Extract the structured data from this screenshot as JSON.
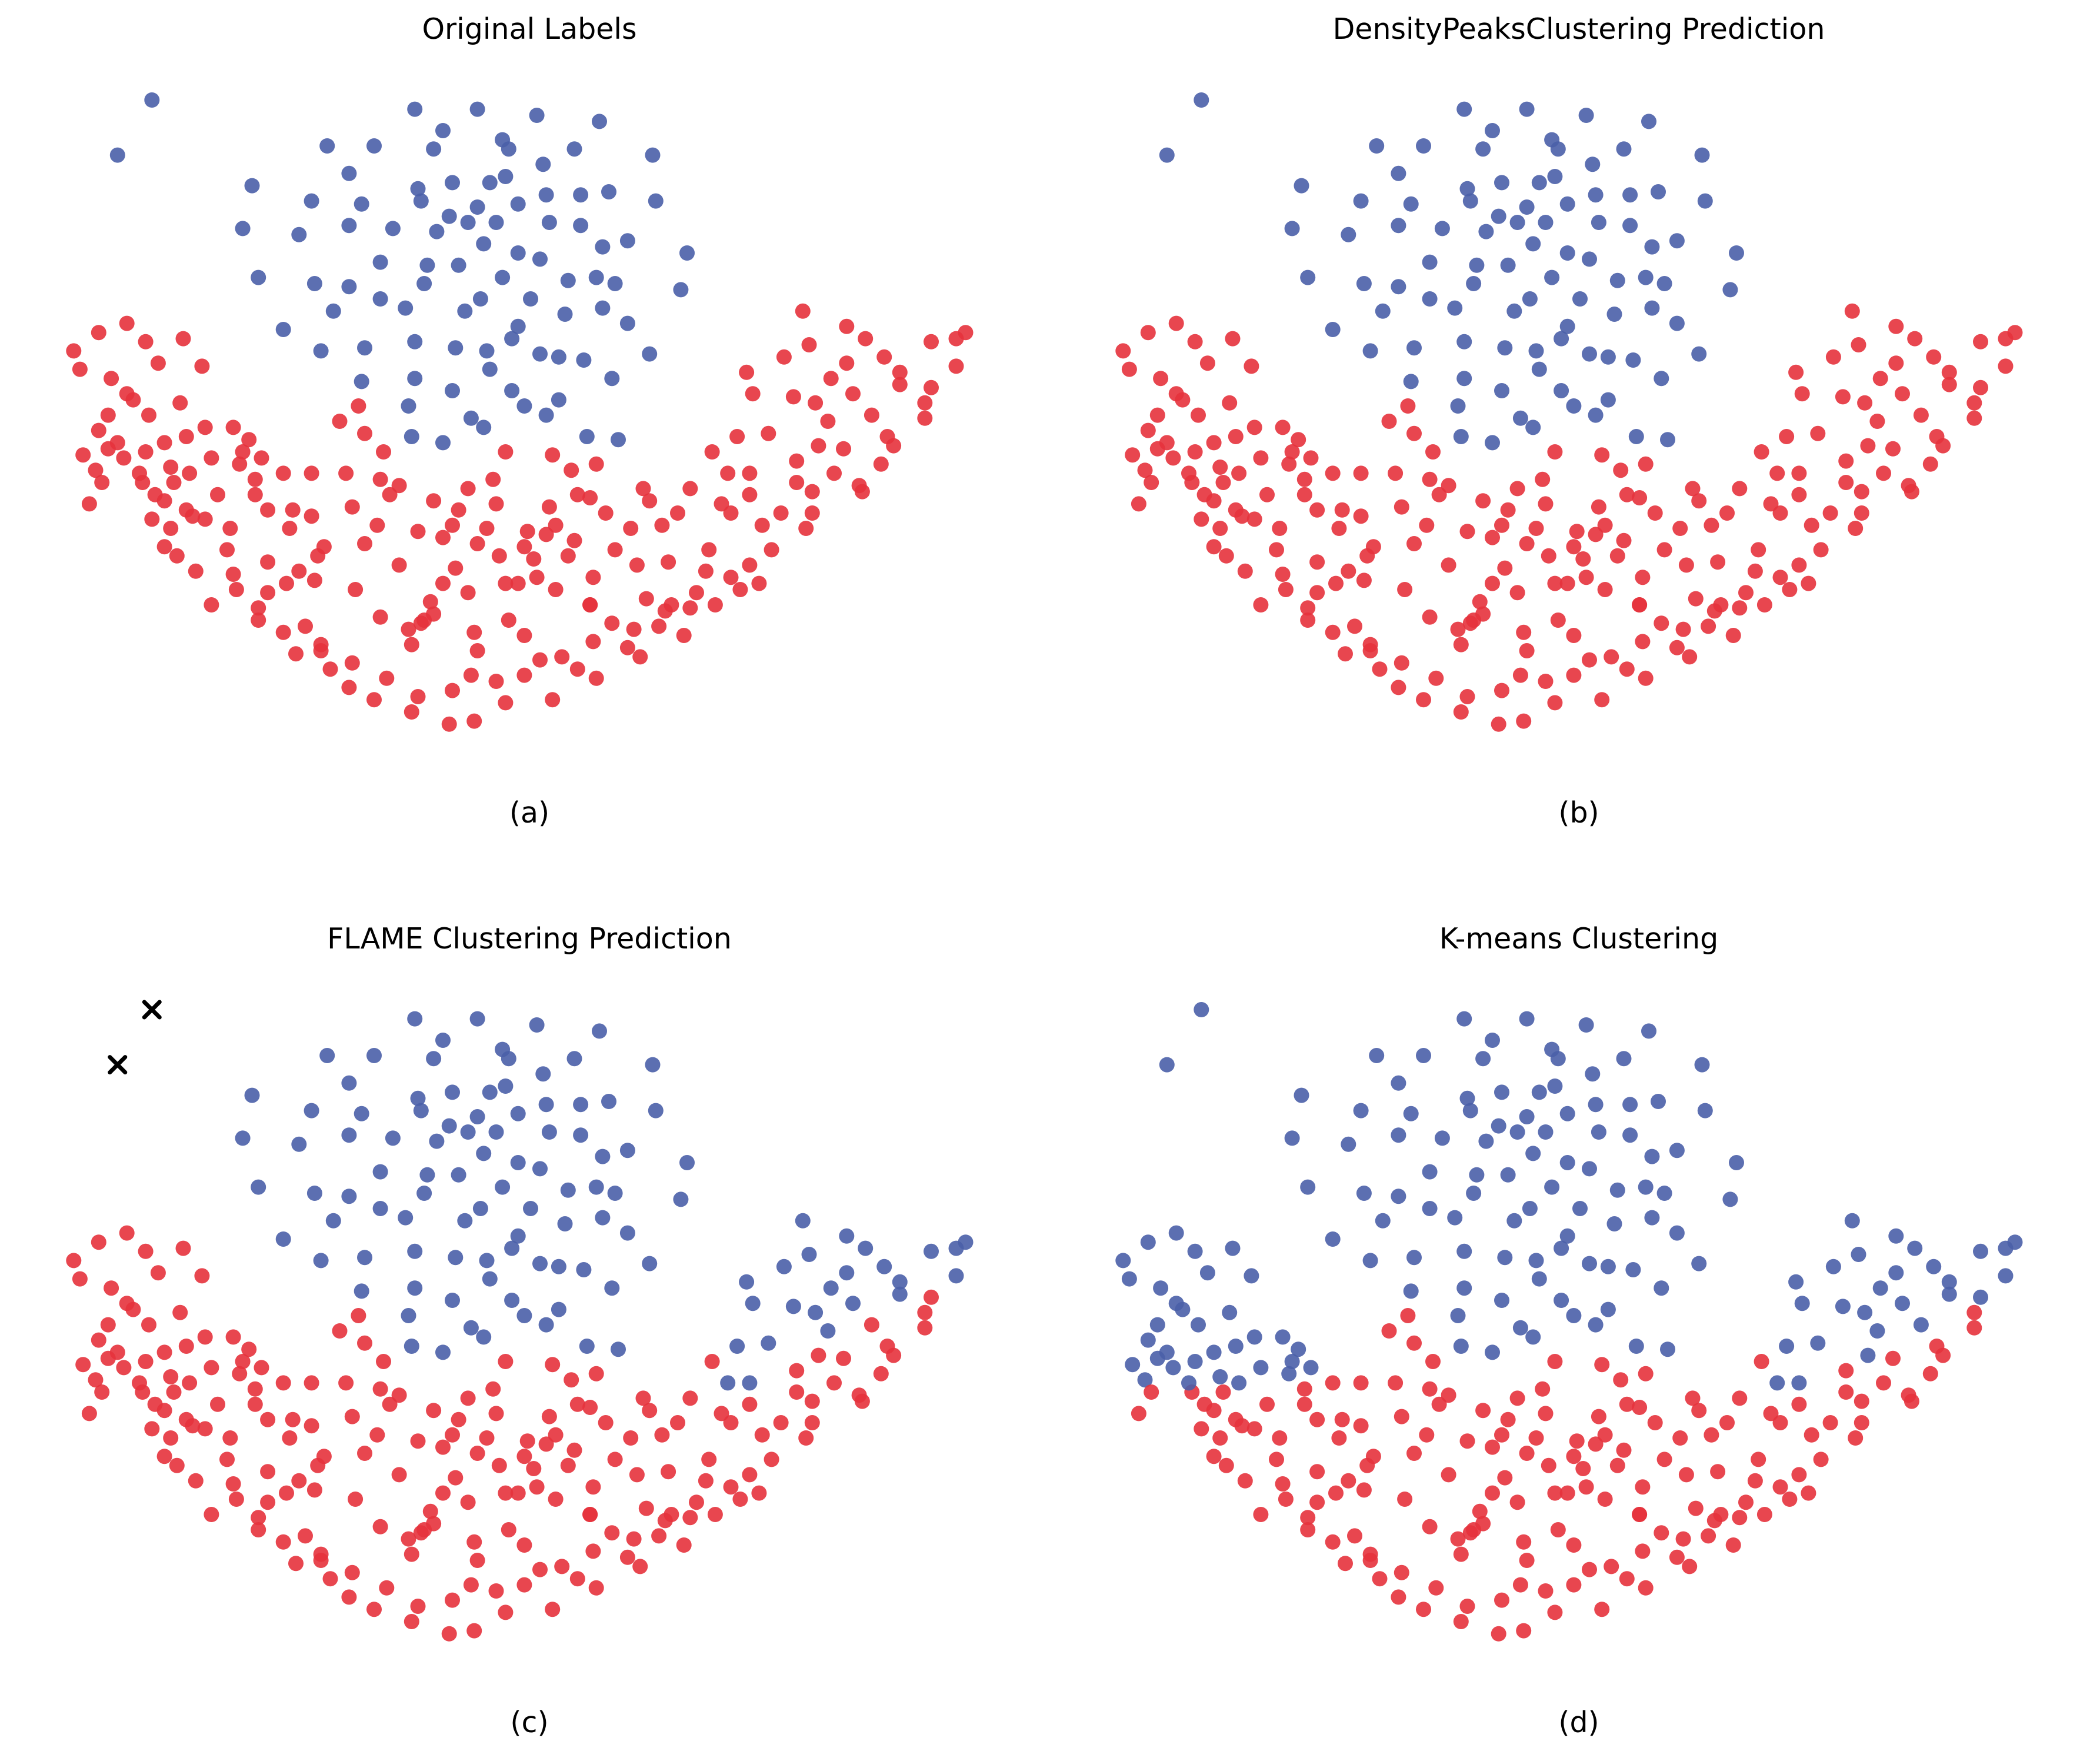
{
  "colors": {
    "cluster_0": "#e6323c",
    "cluster_1": "#4a5fa8",
    "noise": "#000000"
  },
  "chart_data": [
    {
      "type": "scatter",
      "title": "Original Labels",
      "caption": "(a)",
      "split": "original"
    },
    {
      "type": "scatter",
      "title": "DensityPeaksClustering Prediction",
      "caption": "(b)",
      "split": "original"
    },
    {
      "type": "scatter",
      "title": "FLAME Clustering Prediction",
      "caption": "(c)",
      "split": "flame",
      "noise_marker": "x",
      "noise_points": [
        [
          2.9,
          24.5
        ],
        [
          1.8,
          22.7
        ]
      ]
    },
    {
      "type": "scatter",
      "title": "K-means Clustering",
      "caption": "(d)",
      "split": "kmeans"
    }
  ],
  "points": {
    "cluster_1": [
      [
        2.9,
        24.5
      ],
      [
        1.8,
        22.7
      ],
      [
        11.3,
        24.2
      ],
      [
        13.3,
        24.2
      ],
      [
        15.2,
        24.0
      ],
      [
        17.2,
        23.8
      ],
      [
        12.2,
        23.5
      ],
      [
        14.1,
        23.2
      ],
      [
        8.5,
        23.0
      ],
      [
        10.0,
        23.0
      ],
      [
        11.9,
        22.9
      ],
      [
        14.3,
        22.9
      ],
      [
        16.4,
        22.9
      ],
      [
        18.9,
        22.7
      ],
      [
        15.4,
        22.4
      ],
      [
        9.2,
        22.1
      ],
      [
        14.2,
        22.0
      ],
      [
        6.1,
        21.7
      ],
      [
        12.5,
        21.8
      ],
      [
        13.7,
        21.8
      ],
      [
        17.5,
        21.5
      ],
      [
        11.4,
        21.6
      ],
      [
        8.0,
        21.2
      ],
      [
        9.6,
        21.1
      ],
      [
        11.5,
        21.2
      ],
      [
        14.6,
        21.1
      ],
      [
        13.3,
        21.0
      ],
      [
        16.6,
        21.4
      ],
      [
        15.5,
        21.4
      ],
      [
        19.0,
        21.2
      ],
      [
        12.4,
        20.7
      ],
      [
        5.8,
        20.3
      ],
      [
        7.6,
        20.1
      ],
      [
        9.2,
        20.4
      ],
      [
        10.6,
        20.3
      ],
      [
        13.0,
        20.5
      ],
      [
        13.9,
        20.5
      ],
      [
        15.6,
        20.5
      ],
      [
        16.6,
        20.4
      ],
      [
        12.0,
        20.2
      ],
      [
        13.5,
        19.8
      ],
      [
        14.6,
        19.5
      ],
      [
        10.2,
        19.2
      ],
      [
        11.7,
        19.1
      ],
      [
        15.3,
        19.3
      ],
      [
        18.1,
        19.9
      ],
      [
        16.2,
        18.6
      ],
      [
        17.3,
        19.7
      ],
      [
        6.3,
        18.7
      ],
      [
        8.1,
        18.5
      ],
      [
        12.7,
        19.1
      ],
      [
        17.1,
        18.7
      ],
      [
        9.2,
        18.4
      ],
      [
        11.6,
        18.5
      ],
      [
        14.1,
        18.7
      ],
      [
        15.0,
        18.0
      ],
      [
        17.7,
        18.5
      ],
      [
        19.8,
        18.3
      ],
      [
        13.4,
        18.0
      ],
      [
        11.0,
        17.7
      ],
      [
        10.2,
        18.0
      ],
      [
        8.7,
        17.6
      ],
      [
        12.9,
        17.6
      ],
      [
        14.6,
        17.1
      ],
      [
        16.1,
        17.5
      ],
      [
        17.3,
        17.7
      ],
      [
        20.0,
        19.5
      ],
      [
        7.1,
        17.0
      ],
      [
        9.7,
        16.4
      ],
      [
        11.3,
        16.6
      ],
      [
        12.6,
        16.4
      ],
      [
        13.6,
        16.3
      ],
      [
        15.3,
        16.2
      ],
      [
        16.7,
        16.0
      ],
      [
        18.8,
        16.2
      ],
      [
        18.1,
        17.2
      ],
      [
        8.3,
        16.3
      ],
      [
        9.6,
        15.3
      ],
      [
        11.3,
        15.4
      ],
      [
        12.5,
        15.0
      ],
      [
        13.7,
        15.7
      ],
      [
        14.4,
        16.7
      ],
      [
        15.9,
        14.7
      ],
      [
        16.8,
        13.5
      ],
      [
        14.8,
        14.5
      ],
      [
        11.1,
        14.5
      ],
      [
        13.5,
        13.8
      ],
      [
        14.4,
        15.0
      ],
      [
        11.2,
        13.5
      ],
      [
        12.2,
        13.3
      ],
      [
        13.1,
        14.1
      ],
      [
        17.6,
        15.4
      ],
      [
        17.8,
        13.4
      ],
      [
        15.5,
        14.2
      ],
      [
        15.9,
        16.1
      ]
    ],
    "cluster_0": [
      [
        23.7,
        17.6
      ],
      [
        25.1,
        17.1
      ],
      [
        25.7,
        16.7
      ],
      [
        27.8,
        16.6
      ],
      [
        28.6,
        16.7
      ],
      [
        26.8,
        15.6
      ],
      [
        27.8,
        15.1
      ],
      [
        25.3,
        14.9
      ],
      [
        26.8,
        15.2
      ],
      [
        27.6,
        14.6
      ],
      [
        28.6,
        15.8
      ],
      [
        24.1,
        14.6
      ],
      [
        23.4,
        14.8
      ],
      [
        24.5,
        14.0
      ],
      [
        22.1,
        14.9
      ],
      [
        25.9,
        14.2
      ],
      [
        27.6,
        14.1
      ],
      [
        26.4,
        13.5
      ],
      [
        25.0,
        13.1
      ],
      [
        22.6,
        13.6
      ],
      [
        21.6,
        13.5
      ],
      [
        20.8,
        13.0
      ],
      [
        23.5,
        12.7
      ],
      [
        22.0,
        12.3
      ],
      [
        24.7,
        12.3
      ],
      [
        24.2,
        13.2
      ],
      [
        21.3,
        12.3
      ],
      [
        20.1,
        11.8
      ],
      [
        19.7,
        11.0
      ],
      [
        21.1,
        11.3
      ],
      [
        23.0,
        11.0
      ],
      [
        24.0,
        11.0
      ],
      [
        25.5,
        11.9
      ],
      [
        26.2,
        12.6
      ],
      [
        26.6,
        13.2
      ],
      [
        24.0,
        11.7
      ],
      [
        23.5,
        12.0
      ],
      [
        22.0,
        11.6
      ],
      [
        25.6,
        11.7
      ],
      [
        23.8,
        10.5
      ],
      [
        22.4,
        10.6
      ],
      [
        21.4,
        11.0
      ],
      [
        22.7,
        9.8
      ],
      [
        22.0,
        9.3
      ],
      [
        20.7,
        9.8
      ],
      [
        18.8,
        11.4
      ],
      [
        18.6,
        11.8
      ],
      [
        20.6,
        9.1
      ],
      [
        19.2,
        10.6
      ],
      [
        18.2,
        10.5
      ],
      [
        17.4,
        11.0
      ],
      [
        16.9,
        11.5
      ],
      [
        17.7,
        9.8
      ],
      [
        18.4,
        9.3
      ],
      [
        19.5,
        8.0
      ],
      [
        17.0,
        8.9
      ],
      [
        16.9,
        8.0
      ],
      [
        16.2,
        9.6
      ],
      [
        16.4,
        10.1
      ],
      [
        15.8,
        10.6
      ],
      [
        15.6,
        11.2
      ],
      [
        14.9,
        10.4
      ],
      [
        14.8,
        9.9
      ],
      [
        15.2,
        8.9
      ],
      [
        14.0,
        9.6
      ],
      [
        13.6,
        10.5
      ],
      [
        13.3,
        10.0
      ],
      [
        14.2,
        8.7
      ],
      [
        13.0,
        8.4
      ],
      [
        12.6,
        9.2
      ],
      [
        12.2,
        10.2
      ],
      [
        12.5,
        10.6
      ],
      [
        11.9,
        11.4
      ],
      [
        13.0,
        11.8
      ],
      [
        13.8,
        12.1
      ],
      [
        14.2,
        13.0
      ],
      [
        15.7,
        12.9
      ],
      [
        16.3,
        12.4
      ],
      [
        17.1,
        12.6
      ],
      [
        16.5,
        11.6
      ],
      [
        13.2,
        7.1
      ],
      [
        13.3,
        6.5
      ],
      [
        14.8,
        7.0
      ],
      [
        14.3,
        7.5
      ],
      [
        17.6,
        7.4
      ],
      [
        16.9,
        8.0
      ],
      [
        15.8,
        8.5
      ],
      [
        14.6,
        8.7
      ],
      [
        15.1,
        9.5
      ],
      [
        15.5,
        10.3
      ],
      [
        13.9,
        11.3
      ],
      [
        12.7,
        11.1
      ],
      [
        12.2,
        8.7
      ],
      [
        11.8,
        8.1
      ],
      [
        11.1,
        7.2
      ],
      [
        11.5,
        7.4
      ],
      [
        10.1,
        10.6
      ],
      [
        9.3,
        11.2
      ],
      [
        10.5,
        11.6
      ],
      [
        10.2,
        12.1
      ],
      [
        10.8,
        11.9
      ],
      [
        9.1,
        12.3
      ],
      [
        10.3,
        13.0
      ],
      [
        9.7,
        13.6
      ],
      [
        9.5,
        14.5
      ],
      [
        8.9,
        14.0
      ],
      [
        8.0,
        12.3
      ],
      [
        7.4,
        11.1
      ],
      [
        8.0,
        10.9
      ],
      [
        8.4,
        9.9
      ],
      [
        8.1,
        8.8
      ],
      [
        9.4,
        8.5
      ],
      [
        10.2,
        7.6
      ],
      [
        11.6,
        7.5
      ],
      [
        11.2,
        6.7
      ],
      [
        11.9,
        7.7
      ],
      [
        10.8,
        9.3
      ],
      [
        11.4,
        10.4
      ],
      [
        9.7,
        10.0
      ],
      [
        8.2,
        9.6
      ],
      [
        7.3,
        10.5
      ],
      [
        6.6,
        11.1
      ],
      [
        6.2,
        11.6
      ],
      [
        6.2,
        12.1
      ],
      [
        5.8,
        13.0
      ],
      [
        5.5,
        13.8
      ],
      [
        4.6,
        13.8
      ],
      [
        4.0,
        13.5
      ],
      [
        3.3,
        13.3
      ],
      [
        2.7,
        13.0
      ],
      [
        2.6,
        12.0
      ],
      [
        3.6,
        12.0
      ],
      [
        4.1,
        12.3
      ],
      [
        4.8,
        12.8
      ],
      [
        5.7,
        12.6
      ],
      [
        3.5,
        12.5
      ],
      [
        4.0,
        11.1
      ],
      [
        3.3,
        11.4
      ],
      [
        3.0,
        11.6
      ],
      [
        4.6,
        10.8
      ],
      [
        5.4,
        10.5
      ],
      [
        5.3,
        9.8
      ],
      [
        6.6,
        9.4
      ],
      [
        7.6,
        9.1
      ],
      [
        7.2,
        8.7
      ],
      [
        6.6,
        8.4
      ],
      [
        5.5,
        9.0
      ],
      [
        6.3,
        7.5
      ],
      [
        7.8,
        7.3
      ],
      [
        8.3,
        6.7
      ],
      [
        9.3,
        6.1
      ],
      [
        10.4,
        5.6
      ],
      [
        11.4,
        5.0
      ],
      [
        12.5,
        5.2
      ],
      [
        13.1,
        5.7
      ],
      [
        13.9,
        5.5
      ],
      [
        14.8,
        5.7
      ],
      [
        15.3,
        6.2
      ],
      [
        16.0,
        6.3
      ],
      [
        16.5,
        5.9
      ],
      [
        17.0,
        6.8
      ],
      [
        18.1,
        6.6
      ],
      [
        18.3,
        7.2
      ],
      [
        19.3,
        7.8
      ],
      [
        20.1,
        7.9
      ],
      [
        19.9,
        7.0
      ],
      [
        20.9,
        8.0
      ],
      [
        21.7,
        8.5
      ],
      [
        22.3,
        8.7
      ],
      [
        21.4,
        8.9
      ],
      [
        20.3,
        8.4
      ],
      [
        19.4,
        9.4
      ],
      [
        18.7,
        8.2
      ],
      [
        19.1,
        7.3
      ],
      [
        18.5,
        6.3
      ],
      [
        17.1,
        5.6
      ],
      [
        15.7,
        4.9
      ],
      [
        14.2,
        4.8
      ],
      [
        13.2,
        4.2
      ],
      [
        12.4,
        4.1
      ],
      [
        11.2,
        4.5
      ],
      [
        10.0,
        4.9
      ],
      [
        9.2,
        5.3
      ],
      [
        8.6,
        5.9
      ],
      [
        8.3,
        6.5
      ],
      [
        7.5,
        6.4
      ],
      [
        7.1,
        7.1
      ],
      [
        6.3,
        7.9
      ],
      [
        5.6,
        8.5
      ],
      [
        4.8,
        8.0
      ],
      [
        4.3,
        9.1
      ],
      [
        3.7,
        9.6
      ],
      [
        3.3,
        9.9
      ],
      [
        3.5,
        10.5
      ],
      [
        2.9,
        10.8
      ],
      [
        2.5,
        12.3
      ],
      [
        2.0,
        12.8
      ],
      [
        1.8,
        13.3
      ],
      [
        1.5,
        13.1
      ],
      [
        1.1,
        12.4
      ],
      [
        0.9,
        11.3
      ],
      [
        1.3,
        12.0
      ],
      [
        0.7,
        12.9
      ],
      [
        1.2,
        13.7
      ],
      [
        1.5,
        14.2
      ],
      [
        2.3,
        14.7
      ],
      [
        2.8,
        14.2
      ],
      [
        3.8,
        14.6
      ],
      [
        2.1,
        14.9
      ],
      [
        1.6,
        15.4
      ],
      [
        0.4,
        16.3
      ],
      [
        0.6,
        15.7
      ],
      [
        1.2,
        16.9
      ],
      [
        2.1,
        17.2
      ],
      [
        2.7,
        16.6
      ],
      [
        3.9,
        16.7
      ],
      [
        3.1,
        15.9
      ],
      [
        4.5,
        15.8
      ],
      [
        6.0,
        13.4
      ],
      [
        6.4,
        12.8
      ],
      [
        7.1,
        12.3
      ],
      [
        4.2,
        10.9
      ],
      [
        5.0,
        11.6
      ],
      [
        28.9,
        16.9
      ],
      [
        23.9,
        16.5
      ],
      [
        21.9,
        15.6
      ],
      [
        25.1,
        15.9
      ],
      [
        26.3,
        16.1
      ],
      [
        24.6,
        15.4
      ],
      [
        23.1,
        16.1
      ]
    ]
  }
}
